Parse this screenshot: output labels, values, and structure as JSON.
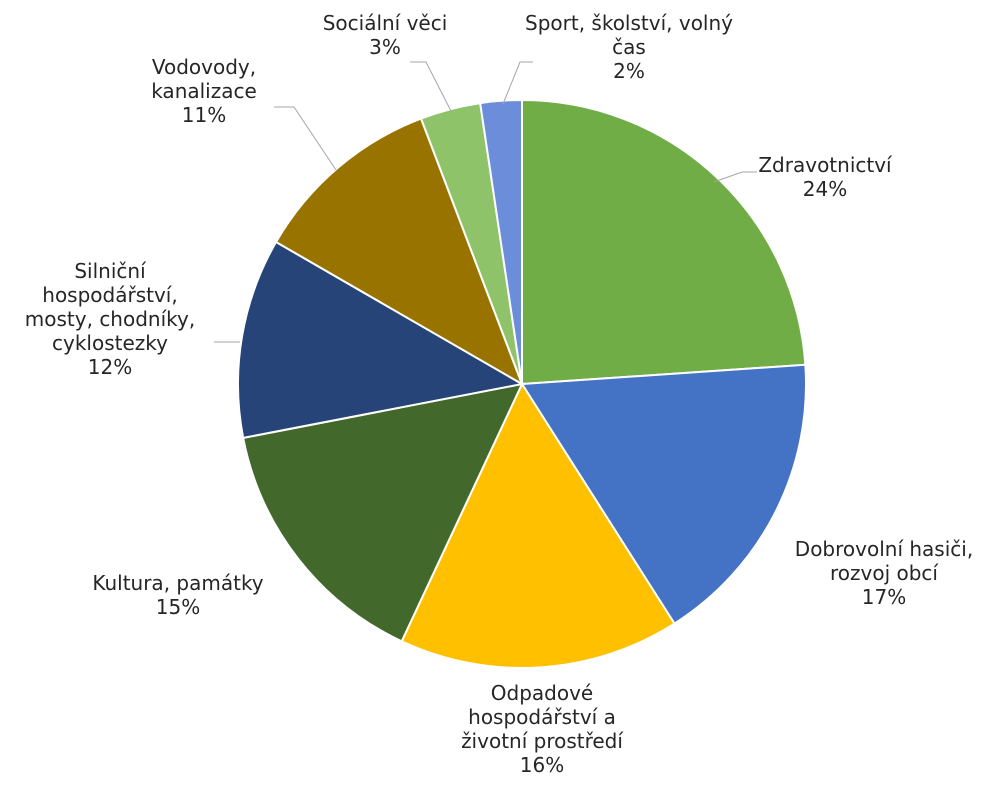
{
  "chart_data": {
    "type": "pie",
    "title": "",
    "start_angle_deg": 0,
    "direction": "clockwise",
    "legend": "none",
    "labels_show": [
      "category",
      "percent"
    ],
    "slices": [
      {
        "category": "Zdravotnictví",
        "label_lines": [
          "Zdravotnictví"
        ],
        "percent_label": "24%",
        "value": 24.4,
        "color": "#70AD47"
      },
      {
        "category": "Dobrovolní hasiči, rozvoj obcí",
        "label_lines": [
          "Dobrovolní hasiči,",
          "rozvoj obcí"
        ],
        "percent_label": "17%",
        "value": 17.4,
        "color": "#4472C4"
      },
      {
        "category": "Odpadové hospodářství a životní prostředí",
        "label_lines": [
          "Odpadové",
          "hospodářství a",
          "životní prostředí"
        ],
        "percent_label": "16%",
        "value": 16.3,
        "color": "#FFC000"
      },
      {
        "category": "Kultura, památky",
        "label_lines": [
          "Kultura, památky"
        ],
        "percent_label": "15%",
        "value": 15.3,
        "color": "#43682B"
      },
      {
        "category": "Silniční hospodářství, mosty, chodníky, cyklostezky",
        "label_lines": [
          "Silniční",
          "hospodářství,",
          "mosty, chodníky,",
          "cyklostezky"
        ],
        "percent_label": "12%",
        "value": 11.6,
        "color": "#264478"
      },
      {
        "category": "Vodovody, kanalizace",
        "label_lines": [
          "Vodovody,",
          "kanalizace"
        ],
        "percent_label": "11%",
        "value": 11.1,
        "color": "#997300"
      },
      {
        "category": "Sociální věci",
        "label_lines": [
          "Sociální věci"
        ],
        "percent_label": "3%",
        "value": 3.5,
        "color": "#8FC36A"
      },
      {
        "category": "Sport, školství, volný čas",
        "label_lines": [
          "Sport, školství, volný",
          "čas"
        ],
        "percent_label": "2%",
        "value": 2.4,
        "color": "#6C8EDA"
      }
    ]
  }
}
